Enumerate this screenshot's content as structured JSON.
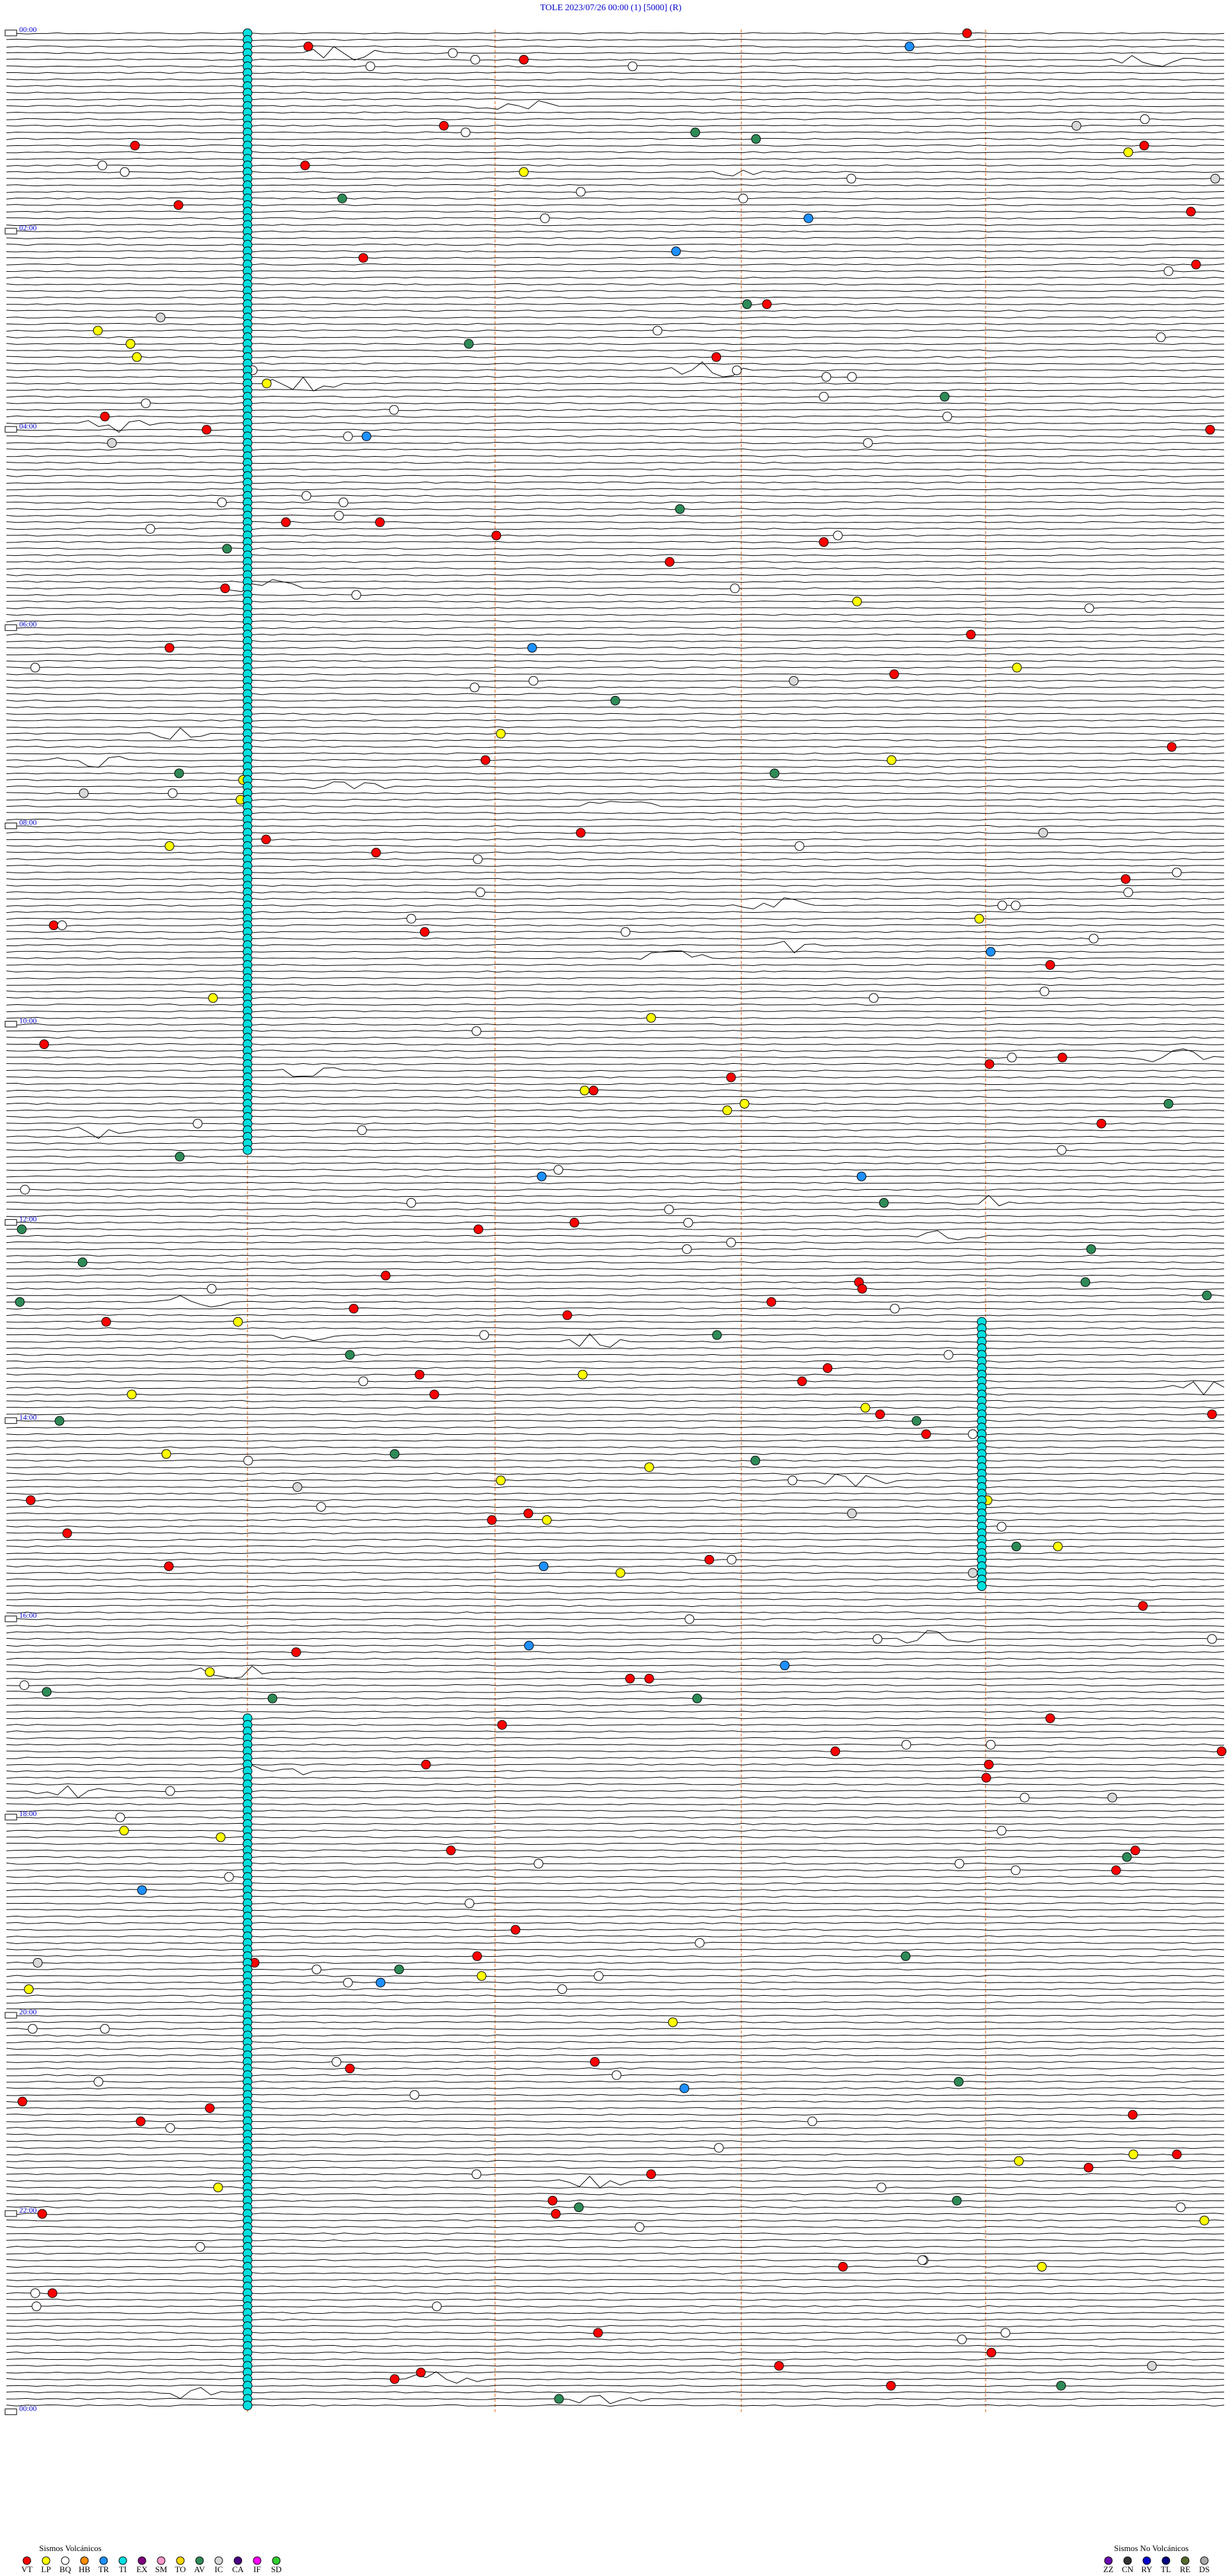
{
  "header": {
    "title": "TOLE    2023/07/26 00:00     (1)     [5000]    (R)"
  },
  "hour_labels": [
    "00:00",
    "02:00",
    "04:00",
    "06:00",
    "08:00",
    "10:00",
    "12:00",
    "14:00",
    "16:00",
    "18:00",
    "20:00",
    "22:00",
    "00:00"
  ],
  "legend": {
    "volcanic": {
      "title": "Sismos Volcánicos",
      "items": [
        {
          "code": "VT",
          "color": "#ff0000"
        },
        {
          "code": "LP",
          "color": "#ffff00"
        },
        {
          "code": "BQ",
          "color": "#ffffff"
        },
        {
          "code": "HB",
          "color": "#ff8c00"
        },
        {
          "code": "TR",
          "color": "#1e90ff"
        },
        {
          "code": "TI",
          "color": "#00e0e0"
        },
        {
          "code": "EX",
          "color": "#800080"
        },
        {
          "code": "SM",
          "color": "#ff99cc"
        },
        {
          "code": "TO",
          "color": "#ffd700"
        },
        {
          "code": "AV",
          "color": "#2e8b57"
        },
        {
          "code": "IC",
          "color": "#d8d8d8"
        },
        {
          "code": "CA",
          "color": "#4b0082"
        },
        {
          "code": "IF",
          "color": "#ff00ff"
        },
        {
          "code": "SD",
          "color": "#32cd32"
        }
      ]
    },
    "non_volcanic": {
      "title": "Sismos No Volcánicos",
      "items": [
        {
          "code": "ZZ",
          "color": "#6a0dad"
        },
        {
          "code": "CN",
          "color": "#333333"
        },
        {
          "code": "RY",
          "color": "#0000cd"
        },
        {
          "code": "TL",
          "color": "#000080"
        },
        {
          "code": "RE",
          "color": "#556b2f"
        },
        {
          "code": "DS",
          "color": "#a9a9a9"
        }
      ]
    }
  }
}
